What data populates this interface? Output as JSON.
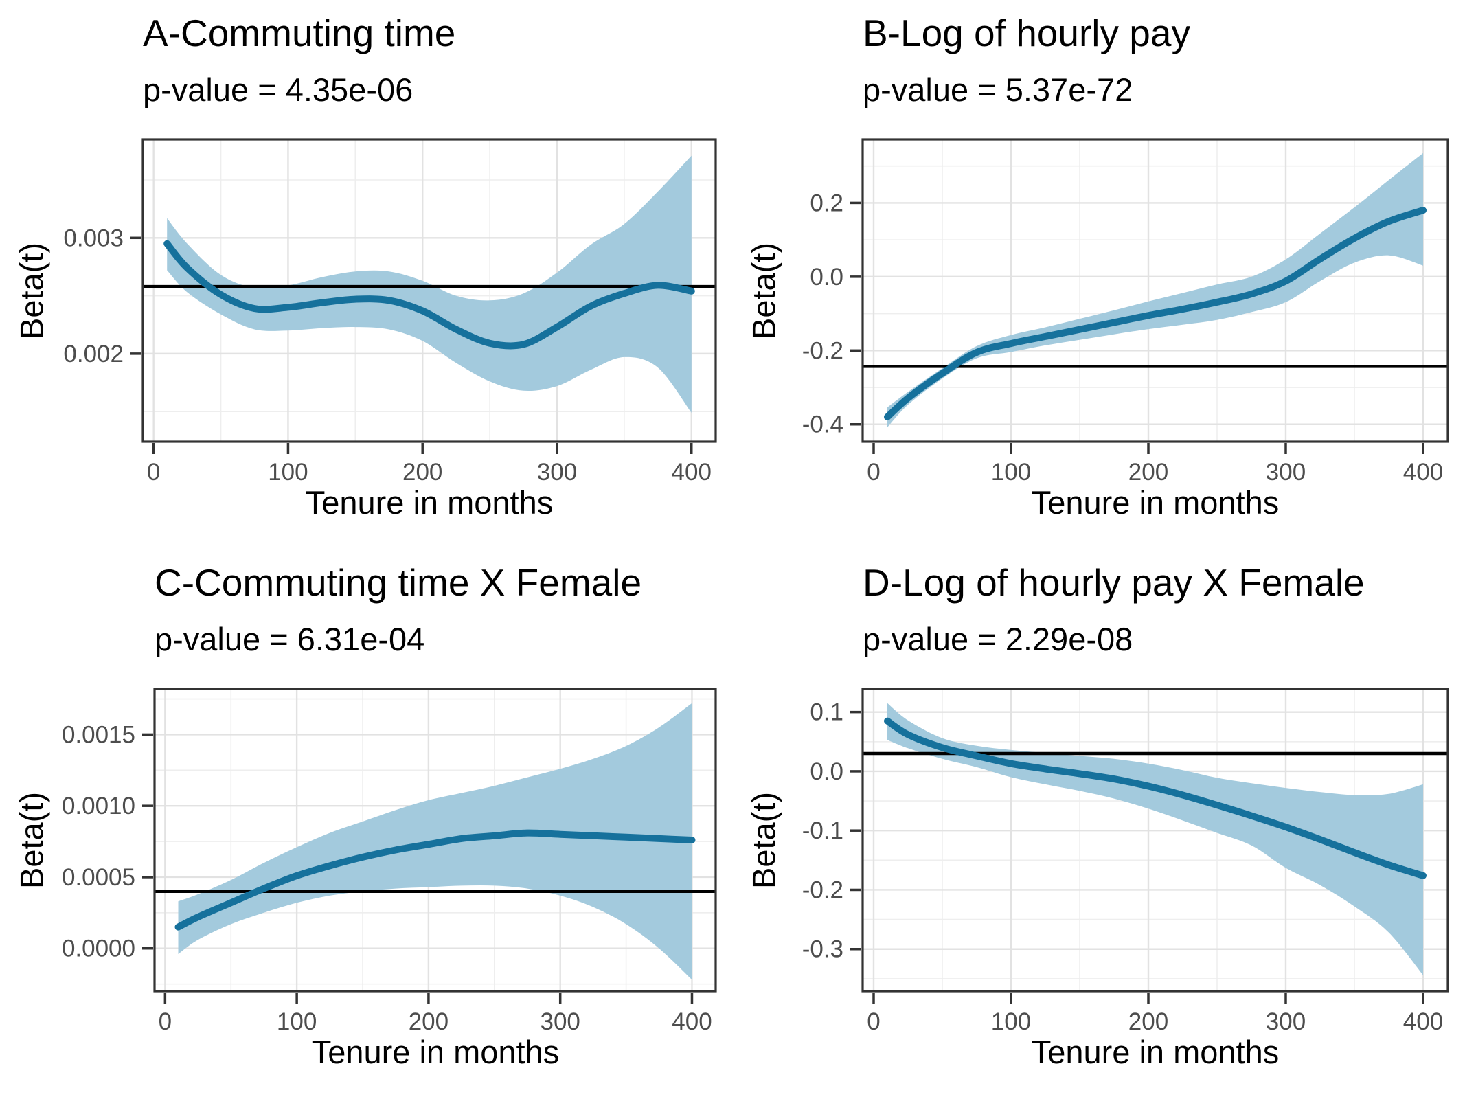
{
  "style": {
    "line_color": "#16719c",
    "band_color": "#a3cadd",
    "ref_line_color": "#000000",
    "grid_major_color": "#e2e2e2",
    "grid_minor_color": "#eeeeee",
    "border_color": "#333333",
    "tick_label_color": "#4d4d4d",
    "title_color": "#000000",
    "background_color": "#ffffff"
  },
  "chart_data": [
    {
      "id": "A",
      "type": "line",
      "title": "A-Commuting time",
      "subtitle": "p-value = 4.35e-06",
      "xlabel": "Tenure in months",
      "ylabel": "Beta(t)",
      "legend": "none",
      "grid": "on",
      "x": [
        10,
        25,
        50,
        75,
        100,
        125,
        150,
        175,
        200,
        225,
        250,
        275,
        300,
        325,
        350,
        375,
        400
      ],
      "y": [
        0.00295,
        0.00274,
        0.00251,
        0.00239,
        0.0024,
        0.00244,
        0.00247,
        0.00246,
        0.00237,
        0.00221,
        0.00209,
        0.00208,
        0.00223,
        0.00241,
        0.00252,
        0.00259,
        0.00254
      ],
      "upper": [
        0.00317,
        0.00295,
        0.00268,
        0.00257,
        0.00259,
        0.00266,
        0.00271,
        0.00271,
        0.00263,
        0.0025,
        0.00246,
        0.00252,
        0.0027,
        0.00294,
        0.00312,
        0.0034,
        0.00371
      ],
      "lower": [
        0.00272,
        0.00253,
        0.00234,
        0.00221,
        0.0022,
        0.00222,
        0.00223,
        0.00221,
        0.00211,
        0.00192,
        0.00176,
        0.00168,
        0.00172,
        0.00186,
        0.00197,
        0.00188,
        0.00149
      ],
      "ref_line": 0.00258,
      "xlim": [
        -8,
        418
      ],
      "ylim": [
        0.00124,
        0.00385
      ],
      "xticks": {
        "values": [
          0,
          100,
          200,
          300,
          400
        ],
        "labels": [
          "0",
          "100",
          "200",
          "300",
          "400"
        ],
        "minor": [
          50,
          150,
          250,
          350
        ]
      },
      "yticks": {
        "values": [
          0.002,
          0.003
        ],
        "labels": [
          "0.002",
          "0.003"
        ],
        "minor": [
          0.0015,
          0.0025,
          0.0035
        ]
      }
    },
    {
      "id": "B",
      "type": "line",
      "title": "B-Log of hourly pay",
      "subtitle": "p-value = 5.37e-72",
      "xlabel": "Tenure in months",
      "ylabel": "Beta(t)",
      "legend": "none",
      "grid": "on",
      "x": [
        10,
        25,
        50,
        75,
        100,
        125,
        150,
        175,
        200,
        225,
        250,
        275,
        300,
        325,
        350,
        375,
        400
      ],
      "y": [
        -0.38,
        -0.329,
        -0.262,
        -0.205,
        -0.181,
        -0.162,
        -0.143,
        -0.124,
        -0.105,
        -0.088,
        -0.069,
        -0.047,
        -0.012,
        0.048,
        0.104,
        0.15,
        0.18
      ],
      "upper": [
        -0.354,
        -0.312,
        -0.248,
        -0.188,
        -0.158,
        -0.137,
        -0.114,
        -0.091,
        -0.067,
        -0.044,
        -0.021,
        0.0,
        0.047,
        0.117,
        0.188,
        0.262,
        0.335
      ],
      "lower": [
        -0.408,
        -0.347,
        -0.276,
        -0.221,
        -0.204,
        -0.186,
        -0.171,
        -0.156,
        -0.142,
        -0.13,
        -0.117,
        -0.096,
        -0.069,
        -0.012,
        0.038,
        0.058,
        0.03
      ],
      "ref_line": -0.243,
      "xlim": [
        -8,
        418
      ],
      "ylim": [
        -0.447,
        0.372
      ],
      "xticks": {
        "values": [
          0,
          100,
          200,
          300,
          400
        ],
        "labels": [
          "0",
          "100",
          "200",
          "300",
          "400"
        ],
        "minor": [
          50,
          150,
          250,
          350
        ]
      },
      "yticks": {
        "values": [
          -0.4,
          -0.2,
          0.0,
          0.2
        ],
        "labels": [
          "-0.4",
          "-0.2",
          "0.0",
          "0.2"
        ],
        "minor": [
          -0.3,
          -0.1,
          0.1,
          0.3
        ]
      }
    },
    {
      "id": "C",
      "type": "line",
      "title": "C-Commuting time X Female",
      "subtitle": "p-value = 6.31e-04",
      "xlabel": "Tenure in months",
      "ylabel": "Beta(t)",
      "legend": "none",
      "grid": "on",
      "x": [
        10,
        25,
        50,
        75,
        100,
        125,
        150,
        175,
        200,
        225,
        250,
        275,
        300,
        325,
        350,
        375,
        400
      ],
      "y": [
        0.00015,
        0.00022,
        0.00032,
        0.00042,
        0.00051,
        0.00058,
        0.00064,
        0.00069,
        0.00073,
        0.00077,
        0.00079,
        0.00081,
        0.0008,
        0.00079,
        0.00078,
        0.00077,
        0.00076
      ],
      "upper": [
        0.00033,
        0.00038,
        0.00048,
        0.0006,
        0.00071,
        0.00081,
        0.00089,
        0.00097,
        0.00104,
        0.00109,
        0.00114,
        0.0012,
        0.00126,
        0.00133,
        0.00142,
        0.00155,
        0.00172
      ],
      "lower": [
        -4e-05,
        6e-05,
        0.00017,
        0.00025,
        0.00032,
        0.00037,
        0.0004,
        0.00042,
        0.00043,
        0.00044,
        0.00044,
        0.00042,
        0.00037,
        0.00029,
        0.00017,
        0.0,
        -0.00022
      ],
      "ref_line": 0.0004,
      "xlim": [
        -8,
        418
      ],
      "ylim": [
        -0.0003,
        0.00182
      ],
      "xticks": {
        "values": [
          0,
          100,
          200,
          300,
          400
        ],
        "labels": [
          "0",
          "100",
          "200",
          "300",
          "400"
        ],
        "minor": [
          50,
          150,
          250,
          350
        ]
      },
      "yticks": {
        "values": [
          0.0,
          0.0005,
          0.001,
          0.0015
        ],
        "labels": [
          "0.0000",
          "0.0005",
          "0.0010",
          "0.0015"
        ],
        "minor": [
          -0.00025,
          0.00025,
          0.00075,
          0.00125,
          0.00175
        ]
      }
    },
    {
      "id": "D",
      "type": "line",
      "title": "D-Log of hourly pay X Female",
      "subtitle": "p-value = 2.29e-08",
      "xlabel": "Tenure in months",
      "ylabel": "Beta(t)",
      "legend": "none",
      "grid": "on",
      "x": [
        10,
        25,
        50,
        75,
        100,
        125,
        150,
        175,
        200,
        225,
        250,
        275,
        300,
        325,
        350,
        375,
        400
      ],
      "y": [
        0.085,
        0.062,
        0.04,
        0.026,
        0.013,
        0.004,
        -0.004,
        -0.013,
        -0.025,
        -0.04,
        -0.057,
        -0.075,
        -0.094,
        -0.115,
        -0.137,
        -0.158,
        -0.176
      ],
      "upper": [
        0.115,
        0.086,
        0.056,
        0.043,
        0.036,
        0.031,
        0.026,
        0.021,
        0.013,
        0.002,
        -0.011,
        -0.02,
        -0.028,
        -0.035,
        -0.04,
        -0.038,
        -0.022
      ],
      "lower": [
        0.053,
        0.039,
        0.021,
        0.007,
        -0.01,
        -0.022,
        -0.033,
        -0.046,
        -0.063,
        -0.083,
        -0.104,
        -0.125,
        -0.163,
        -0.192,
        -0.228,
        -0.272,
        -0.344
      ],
      "ref_line": 0.03,
      "xlim": [
        -8,
        418
      ],
      "ylim": [
        -0.371,
        0.139
      ],
      "xticks": {
        "values": [
          0,
          100,
          200,
          300,
          400
        ],
        "labels": [
          "0",
          "100",
          "200",
          "300",
          "400"
        ],
        "minor": [
          50,
          150,
          250,
          350
        ]
      },
      "yticks": {
        "values": [
          -0.3,
          -0.2,
          -0.1,
          0.0,
          0.1
        ],
        "labels": [
          "-0.3",
          "-0.2",
          "-0.1",
          "0.0",
          "0.1"
        ],
        "minor": [
          -0.35,
          -0.25,
          -0.15,
          -0.05,
          0.05
        ]
      }
    }
  ]
}
